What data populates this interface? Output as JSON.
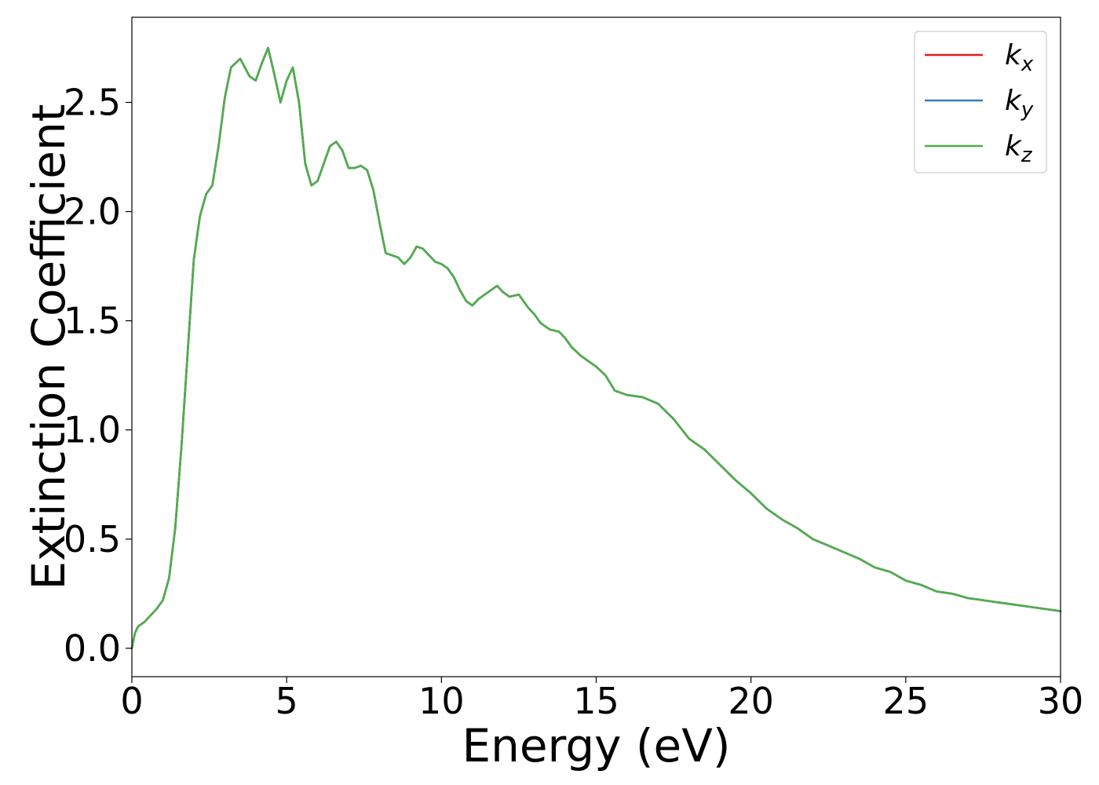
{
  "chart_data": {
    "type": "line",
    "title": "",
    "xlabel": "Energy (eV)",
    "ylabel": "Extinction Coefficient",
    "xlim": [
      0,
      30
    ],
    "ylim": [
      -0.13,
      2.89
    ],
    "xticks": [
      0,
      5,
      10,
      15,
      20,
      25,
      30
    ],
    "xtick_labels": [
      "0",
      "5",
      "10",
      "15",
      "20",
      "25",
      "30"
    ],
    "yticks": [
      0.0,
      0.5,
      1.0,
      1.5,
      2.0,
      2.5
    ],
    "ytick_labels": [
      "0.0",
      "0.5",
      "1.0",
      "1.5",
      "2.0",
      "2.5"
    ],
    "grid": false,
    "legend_position": "top-right",
    "series": [
      {
        "name": "k_x",
        "legend_main": "k",
        "legend_sub": "x",
        "color": "#e41a1c",
        "x": [
          0,
          0.1,
          0.2,
          0.4,
          0.6,
          0.8,
          1.0,
          1.2,
          1.4,
          1.6,
          1.8,
          2.0,
          2.2,
          2.4,
          2.6,
          2.8,
          3.0,
          3.2,
          3.5,
          3.8,
          4.0,
          4.2,
          4.4,
          4.6,
          4.8,
          5.0,
          5.2,
          5.4,
          5.6,
          5.8,
          6.0,
          6.2,
          6.4,
          6.6,
          6.8,
          7.0,
          7.2,
          7.4,
          7.6,
          7.8,
          8.0,
          8.2,
          8.4,
          8.6,
          8.8,
          9.0,
          9.2,
          9.4,
          9.6,
          9.8,
          10.0,
          10.2,
          10.4,
          10.6,
          10.8,
          11.0,
          11.2,
          11.5,
          11.8,
          12.0,
          12.2,
          12.5,
          12.8,
          13.0,
          13.2,
          13.5,
          13.8,
          14.0,
          14.2,
          14.5,
          15.0,
          15.3,
          15.6,
          16.0,
          16.5,
          17.0,
          17.5,
          18.0,
          18.5,
          19.0,
          19.5,
          20.0,
          20.5,
          21.0,
          21.5,
          22.0,
          22.5,
          23.0,
          23.5,
          24.0,
          24.5,
          25.0,
          25.5,
          26.0,
          26.5,
          27.0,
          27.5,
          28.0,
          28.5,
          29.0,
          29.5,
          30.0
        ],
        "y": [
          0.0,
          0.07,
          0.1,
          0.12,
          0.15,
          0.18,
          0.22,
          0.32,
          0.55,
          0.92,
          1.35,
          1.78,
          1.98,
          2.08,
          2.12,
          2.3,
          2.52,
          2.66,
          2.7,
          2.62,
          2.6,
          2.68,
          2.75,
          2.63,
          2.5,
          2.6,
          2.66,
          2.5,
          2.22,
          2.12,
          2.14,
          2.22,
          2.3,
          2.32,
          2.28,
          2.2,
          2.2,
          2.21,
          2.19,
          2.1,
          1.95,
          1.81,
          1.8,
          1.79,
          1.76,
          1.79,
          1.84,
          1.83,
          1.8,
          1.77,
          1.76,
          1.74,
          1.7,
          1.64,
          1.59,
          1.57,
          1.6,
          1.63,
          1.66,
          1.63,
          1.61,
          1.62,
          1.56,
          1.53,
          1.49,
          1.46,
          1.45,
          1.42,
          1.38,
          1.34,
          1.29,
          1.25,
          1.18,
          1.16,
          1.15,
          1.12,
          1.05,
          0.96,
          0.91,
          0.84,
          0.77,
          0.71,
          0.64,
          0.59,
          0.55,
          0.5,
          0.47,
          0.44,
          0.41,
          0.37,
          0.35,
          0.31,
          0.29,
          0.26,
          0.25,
          0.23,
          0.22,
          0.21,
          0.2,
          0.19,
          0.18,
          0.17
        ]
      },
      {
        "name": "k_y",
        "legend_main": "k",
        "legend_sub": "y",
        "color": "#377eb8",
        "x": [
          0,
          0.1,
          0.2,
          0.4,
          0.6,
          0.8,
          1.0,
          1.2,
          1.4,
          1.6,
          1.8,
          2.0,
          2.2,
          2.4,
          2.6,
          2.8,
          3.0,
          3.2,
          3.5,
          3.8,
          4.0,
          4.2,
          4.4,
          4.6,
          4.8,
          5.0,
          5.2,
          5.4,
          5.6,
          5.8,
          6.0,
          6.2,
          6.4,
          6.6,
          6.8,
          7.0,
          7.2,
          7.4,
          7.6,
          7.8,
          8.0,
          8.2,
          8.4,
          8.6,
          8.8,
          9.0,
          9.2,
          9.4,
          9.6,
          9.8,
          10.0,
          10.2,
          10.4,
          10.6,
          10.8,
          11.0,
          11.2,
          11.5,
          11.8,
          12.0,
          12.2,
          12.5,
          12.8,
          13.0,
          13.2,
          13.5,
          13.8,
          14.0,
          14.2,
          14.5,
          15.0,
          15.3,
          15.6,
          16.0,
          16.5,
          17.0,
          17.5,
          18.0,
          18.5,
          19.0,
          19.5,
          20.0,
          20.5,
          21.0,
          21.5,
          22.0,
          22.5,
          23.0,
          23.5,
          24.0,
          24.5,
          25.0,
          25.5,
          26.0,
          26.5,
          27.0,
          27.5,
          28.0,
          28.5,
          29.0,
          29.5,
          30.0
        ],
        "y": [
          0.0,
          0.07,
          0.1,
          0.12,
          0.15,
          0.18,
          0.22,
          0.32,
          0.55,
          0.92,
          1.35,
          1.78,
          1.98,
          2.08,
          2.12,
          2.3,
          2.52,
          2.66,
          2.7,
          2.62,
          2.6,
          2.68,
          2.75,
          2.63,
          2.5,
          2.6,
          2.66,
          2.5,
          2.22,
          2.12,
          2.14,
          2.22,
          2.3,
          2.32,
          2.28,
          2.2,
          2.2,
          2.21,
          2.19,
          2.1,
          1.95,
          1.81,
          1.8,
          1.79,
          1.76,
          1.79,
          1.84,
          1.83,
          1.8,
          1.77,
          1.76,
          1.74,
          1.7,
          1.64,
          1.59,
          1.57,
          1.6,
          1.63,
          1.66,
          1.63,
          1.61,
          1.62,
          1.56,
          1.53,
          1.49,
          1.46,
          1.45,
          1.42,
          1.38,
          1.34,
          1.29,
          1.25,
          1.18,
          1.16,
          1.15,
          1.12,
          1.05,
          0.96,
          0.91,
          0.84,
          0.77,
          0.71,
          0.64,
          0.59,
          0.55,
          0.5,
          0.47,
          0.44,
          0.41,
          0.37,
          0.35,
          0.31,
          0.29,
          0.26,
          0.25,
          0.23,
          0.22,
          0.21,
          0.2,
          0.19,
          0.18,
          0.17
        ]
      },
      {
        "name": "k_z",
        "legend_main": "k",
        "legend_sub": "z",
        "color": "#4daf4a",
        "x": [
          0,
          0.1,
          0.2,
          0.4,
          0.6,
          0.8,
          1.0,
          1.2,
          1.4,
          1.6,
          1.8,
          2.0,
          2.2,
          2.4,
          2.6,
          2.8,
          3.0,
          3.2,
          3.5,
          3.8,
          4.0,
          4.2,
          4.4,
          4.6,
          4.8,
          5.0,
          5.2,
          5.4,
          5.6,
          5.8,
          6.0,
          6.2,
          6.4,
          6.6,
          6.8,
          7.0,
          7.2,
          7.4,
          7.6,
          7.8,
          8.0,
          8.2,
          8.4,
          8.6,
          8.8,
          9.0,
          9.2,
          9.4,
          9.6,
          9.8,
          10.0,
          10.2,
          10.4,
          10.6,
          10.8,
          11.0,
          11.2,
          11.5,
          11.8,
          12.0,
          12.2,
          12.5,
          12.8,
          13.0,
          13.2,
          13.5,
          13.8,
          14.0,
          14.2,
          14.5,
          15.0,
          15.3,
          15.6,
          16.0,
          16.5,
          17.0,
          17.5,
          18.0,
          18.5,
          19.0,
          19.5,
          20.0,
          20.5,
          21.0,
          21.5,
          22.0,
          22.5,
          23.0,
          23.5,
          24.0,
          24.5,
          25.0,
          25.5,
          26.0,
          26.5,
          27.0,
          27.5,
          28.0,
          28.5,
          29.0,
          29.5,
          30.0
        ],
        "y": [
          0.0,
          0.07,
          0.1,
          0.12,
          0.15,
          0.18,
          0.22,
          0.32,
          0.55,
          0.92,
          1.35,
          1.78,
          1.98,
          2.08,
          2.12,
          2.3,
          2.52,
          2.66,
          2.7,
          2.62,
          2.6,
          2.68,
          2.75,
          2.63,
          2.5,
          2.6,
          2.66,
          2.5,
          2.22,
          2.12,
          2.14,
          2.22,
          2.3,
          2.32,
          2.28,
          2.2,
          2.2,
          2.21,
          2.19,
          2.1,
          1.95,
          1.81,
          1.8,
          1.79,
          1.76,
          1.79,
          1.84,
          1.83,
          1.8,
          1.77,
          1.76,
          1.74,
          1.7,
          1.64,
          1.59,
          1.57,
          1.6,
          1.63,
          1.66,
          1.63,
          1.61,
          1.62,
          1.56,
          1.53,
          1.49,
          1.46,
          1.45,
          1.42,
          1.38,
          1.34,
          1.29,
          1.25,
          1.18,
          1.16,
          1.15,
          1.12,
          1.05,
          0.96,
          0.91,
          0.84,
          0.77,
          0.71,
          0.64,
          0.59,
          0.55,
          0.5,
          0.47,
          0.44,
          0.41,
          0.37,
          0.35,
          0.31,
          0.29,
          0.26,
          0.25,
          0.23,
          0.22,
          0.21,
          0.2,
          0.19,
          0.18,
          0.17
        ]
      }
    ]
  }
}
